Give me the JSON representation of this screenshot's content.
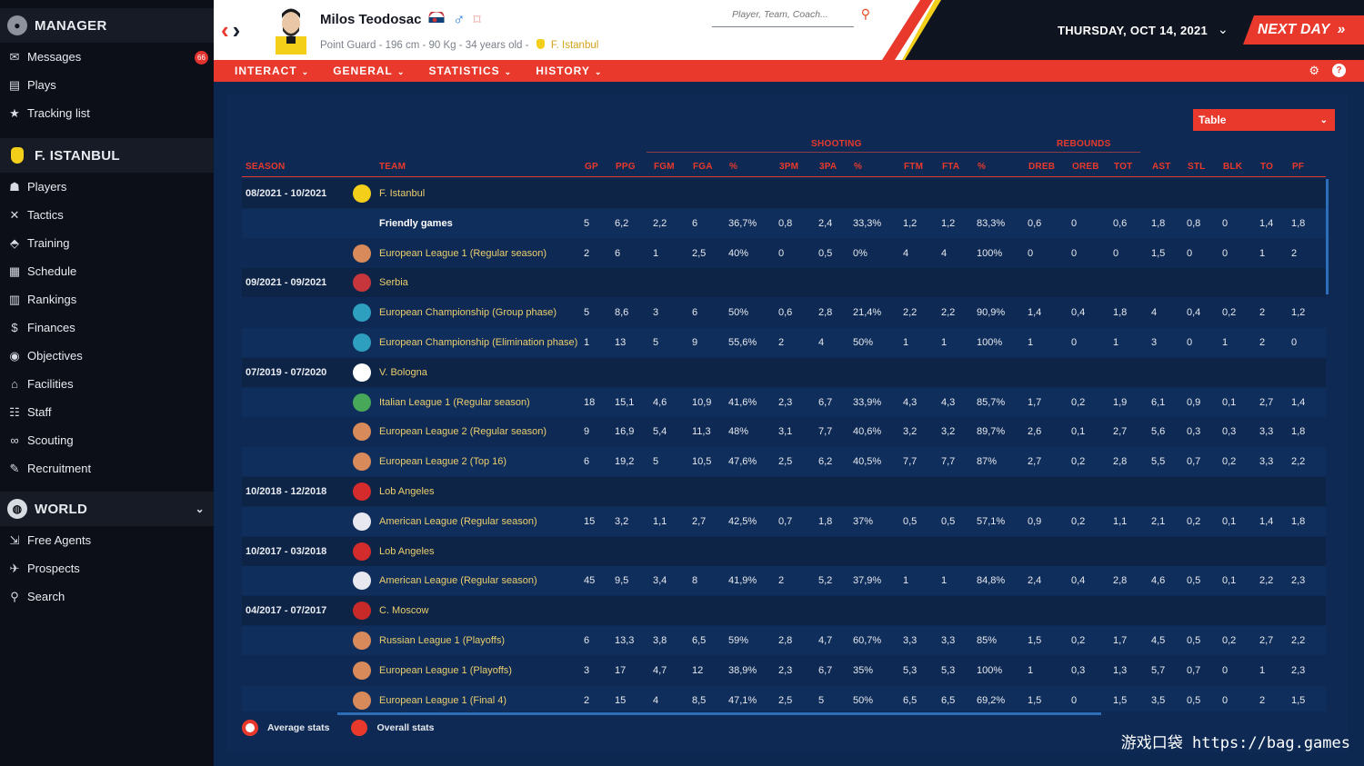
{
  "sidebar": {
    "manager_section": "MANAGER",
    "items": [
      {
        "label": "Messages",
        "icon": "messages-icon",
        "badge": "66"
      },
      {
        "label": "Plays",
        "icon": "plays-icon"
      },
      {
        "label": "Tracking list",
        "icon": "star-icon"
      }
    ],
    "club_section": "F. ISTANBUL",
    "club_items": [
      {
        "label": "Players",
        "icon": "players-icon"
      },
      {
        "label": "Tactics",
        "icon": "tactics-icon"
      },
      {
        "label": "Training",
        "icon": "training-icon"
      },
      {
        "label": "Schedule",
        "icon": "calendar-icon"
      },
      {
        "label": "Rankings",
        "icon": "rankings-icon"
      },
      {
        "label": "Finances",
        "icon": "finances-icon"
      },
      {
        "label": "Objectives",
        "icon": "objectives-icon"
      },
      {
        "label": "Facilities",
        "icon": "facilities-icon"
      },
      {
        "label": "Staff",
        "icon": "staff-icon"
      },
      {
        "label": "Scouting",
        "icon": "binoculars-icon"
      },
      {
        "label": "Recruitment",
        "icon": "recruitment-icon"
      }
    ],
    "world_section": "WORLD",
    "world_items": [
      {
        "label": "Free Agents",
        "icon": "free-agents-icon"
      },
      {
        "label": "Prospects",
        "icon": "prospects-icon"
      },
      {
        "label": "Search",
        "icon": "search-icon"
      }
    ]
  },
  "header": {
    "player_name": "Milos Teodosac",
    "meta_prefix": "Point Guard - 196 cm - 90 Kg - 34 years old -",
    "club": "F. Istanbul",
    "search_placeholder": "Player, Team, Coach...",
    "date": "THURSDAY, OCT 14, 2021",
    "next_day": "NEXT DAY"
  },
  "menu": {
    "items": [
      "INTERACT",
      "GENERAL",
      "STATISTICS",
      "HISTORY"
    ]
  },
  "table": {
    "view_select": "Table",
    "group_headers": {
      "shooting": "SHOOTING",
      "rebounds": "REBOUNDS"
    },
    "columns": [
      "SEASON",
      "TEAM",
      "GP",
      "PPG",
      "FGM",
      "FGA",
      "%",
      "3PM",
      "3PA",
      "%",
      "FTM",
      "FTA",
      "%",
      "DREB",
      "OREB",
      "TOT",
      "AST",
      "STL",
      "BLK",
      "TO",
      "PF"
    ],
    "rows": [
      {
        "kind": "season",
        "season": "08/2021 - 10/2021",
        "team": "F. Istanbul",
        "logo": "#f3cf1a"
      },
      {
        "kind": "plain",
        "team": "Friendly games",
        "stats": [
          "5",
          "6,2",
          "2,2",
          "6",
          "36,7%",
          "0,8",
          "2,4",
          "33,3%",
          "1,2",
          "1,2",
          "83,3%",
          "0,6",
          "0",
          "0,6",
          "1,8",
          "0,8",
          "0",
          "1,4",
          "1,8"
        ]
      },
      {
        "kind": "comp",
        "team": "European League 1 (Regular season)",
        "logo": "#d88a5a",
        "stats": [
          "2",
          "6",
          "1",
          "2,5",
          "40%",
          "0",
          "0,5",
          "0%",
          "4",
          "4",
          "100%",
          "0",
          "0",
          "0",
          "1,5",
          "0",
          "0",
          "1",
          "2"
        ]
      },
      {
        "kind": "season",
        "season": "09/2021 - 09/2021",
        "team": "Serbia",
        "logo": "#c6363c"
      },
      {
        "kind": "comp",
        "team": "European Championship (Group phase)",
        "logo": "#2f9fc0",
        "stats": [
          "5",
          "8,6",
          "3",
          "6",
          "50%",
          "0,6",
          "2,8",
          "21,4%",
          "2,2",
          "2,2",
          "90,9%",
          "1,4",
          "0,4",
          "1,8",
          "4",
          "0,4",
          "0,2",
          "2",
          "1,2"
        ]
      },
      {
        "kind": "comp",
        "team": "European Championship (Elimination phase)",
        "logo": "#2f9fc0",
        "stats": [
          "1",
          "13",
          "5",
          "9",
          "55,6%",
          "2",
          "4",
          "50%",
          "1",
          "1",
          "100%",
          "1",
          "0",
          "1",
          "3",
          "0",
          "1",
          "2",
          "0"
        ]
      },
      {
        "kind": "season",
        "season": "07/2019 - 07/2020",
        "team": "V. Bologna",
        "logo": "#ffffff"
      },
      {
        "kind": "comp",
        "team": "Italian League 1 (Regular season)",
        "logo": "#48a85a",
        "stats": [
          "18",
          "15,1",
          "4,6",
          "10,9",
          "41,6%",
          "2,3",
          "6,7",
          "33,9%",
          "4,3",
          "4,3",
          "85,7%",
          "1,7",
          "0,2",
          "1,9",
          "6,1",
          "0,9",
          "0,1",
          "2,7",
          "1,4"
        ]
      },
      {
        "kind": "comp",
        "team": "European League 2 (Regular season)",
        "logo": "#d88a5a",
        "stats": [
          "9",
          "16,9",
          "5,4",
          "11,3",
          "48%",
          "3,1",
          "7,7",
          "40,6%",
          "3,2",
          "3,2",
          "89,7%",
          "2,6",
          "0,1",
          "2,7",
          "5,6",
          "0,3",
          "0,3",
          "3,3",
          "1,8"
        ]
      },
      {
        "kind": "comp",
        "team": "European League 2 (Top 16)",
        "logo": "#d88a5a",
        "stats": [
          "6",
          "19,2",
          "5",
          "10,5",
          "47,6%",
          "2,5",
          "6,2",
          "40,5%",
          "7,7",
          "7,7",
          "87%",
          "2,7",
          "0,2",
          "2,8",
          "5,5",
          "0,7",
          "0,2",
          "3,3",
          "2,2"
        ]
      },
      {
        "kind": "season",
        "season": "10/2018 - 12/2018",
        "team": "Lob Angeles",
        "logo": "#d42c2c"
      },
      {
        "kind": "comp",
        "team": "American League (Regular season)",
        "logo": "#e8e8f0",
        "stats": [
          "15",
          "3,2",
          "1,1",
          "2,7",
          "42,5%",
          "0,7",
          "1,8",
          "37%",
          "0,5",
          "0,5",
          "57,1%",
          "0,9",
          "0,2",
          "1,1",
          "2,1",
          "0,2",
          "0,1",
          "1,4",
          "1,8"
        ]
      },
      {
        "kind": "season",
        "season": "10/2017 - 03/2018",
        "team": "Lob Angeles",
        "logo": "#d42c2c"
      },
      {
        "kind": "comp",
        "team": "American League (Regular season)",
        "logo": "#e8e8f0",
        "stats": [
          "45",
          "9,5",
          "3,4",
          "8",
          "41,9%",
          "2",
          "5,2",
          "37,9%",
          "1",
          "1",
          "84,8%",
          "2,4",
          "0,4",
          "2,8",
          "4,6",
          "0,5",
          "0,1",
          "2,2",
          "2,3"
        ]
      },
      {
        "kind": "season",
        "season": "04/2017 - 07/2017",
        "team": "C. Moscow",
        "logo": "#c82a2a"
      },
      {
        "kind": "comp",
        "team": "Russian League 1 (Playoffs)",
        "logo": "#d88a5a",
        "stats": [
          "6",
          "13,3",
          "3,8",
          "6,5",
          "59%",
          "2,8",
          "4,7",
          "60,7%",
          "3,3",
          "3,3",
          "85%",
          "1,5",
          "0,2",
          "1,7",
          "4,5",
          "0,5",
          "0,2",
          "2,7",
          "2,2"
        ]
      },
      {
        "kind": "comp",
        "team": "European League 1 (Playoffs)",
        "logo": "#d88a5a",
        "stats": [
          "3",
          "17",
          "4,7",
          "12",
          "38,9%",
          "2,3",
          "6,7",
          "35%",
          "5,3",
          "5,3",
          "100%",
          "1",
          "0,3",
          "1,3",
          "5,7",
          "0,7",
          "0",
          "1",
          "2,3"
        ]
      },
      {
        "kind": "comp",
        "team": "European League 1 (Final 4)",
        "logo": "#d88a5a",
        "stats": [
          "2",
          "15",
          "4",
          "8,5",
          "47,1%",
          "2,5",
          "5",
          "50%",
          "6,5",
          "6,5",
          "69,2%",
          "1,5",
          "0",
          "1,5",
          "3,5",
          "0,5",
          "0",
          "2",
          "1,5"
        ]
      }
    ],
    "legend": {
      "average": "Average stats",
      "overall": "Overall stats"
    }
  },
  "watermark": "游戏口袋 https://bag.games",
  "colors": {
    "accent": "#e8392c",
    "gold": "#ebcf6e",
    "panel": "#0e2a54"
  }
}
